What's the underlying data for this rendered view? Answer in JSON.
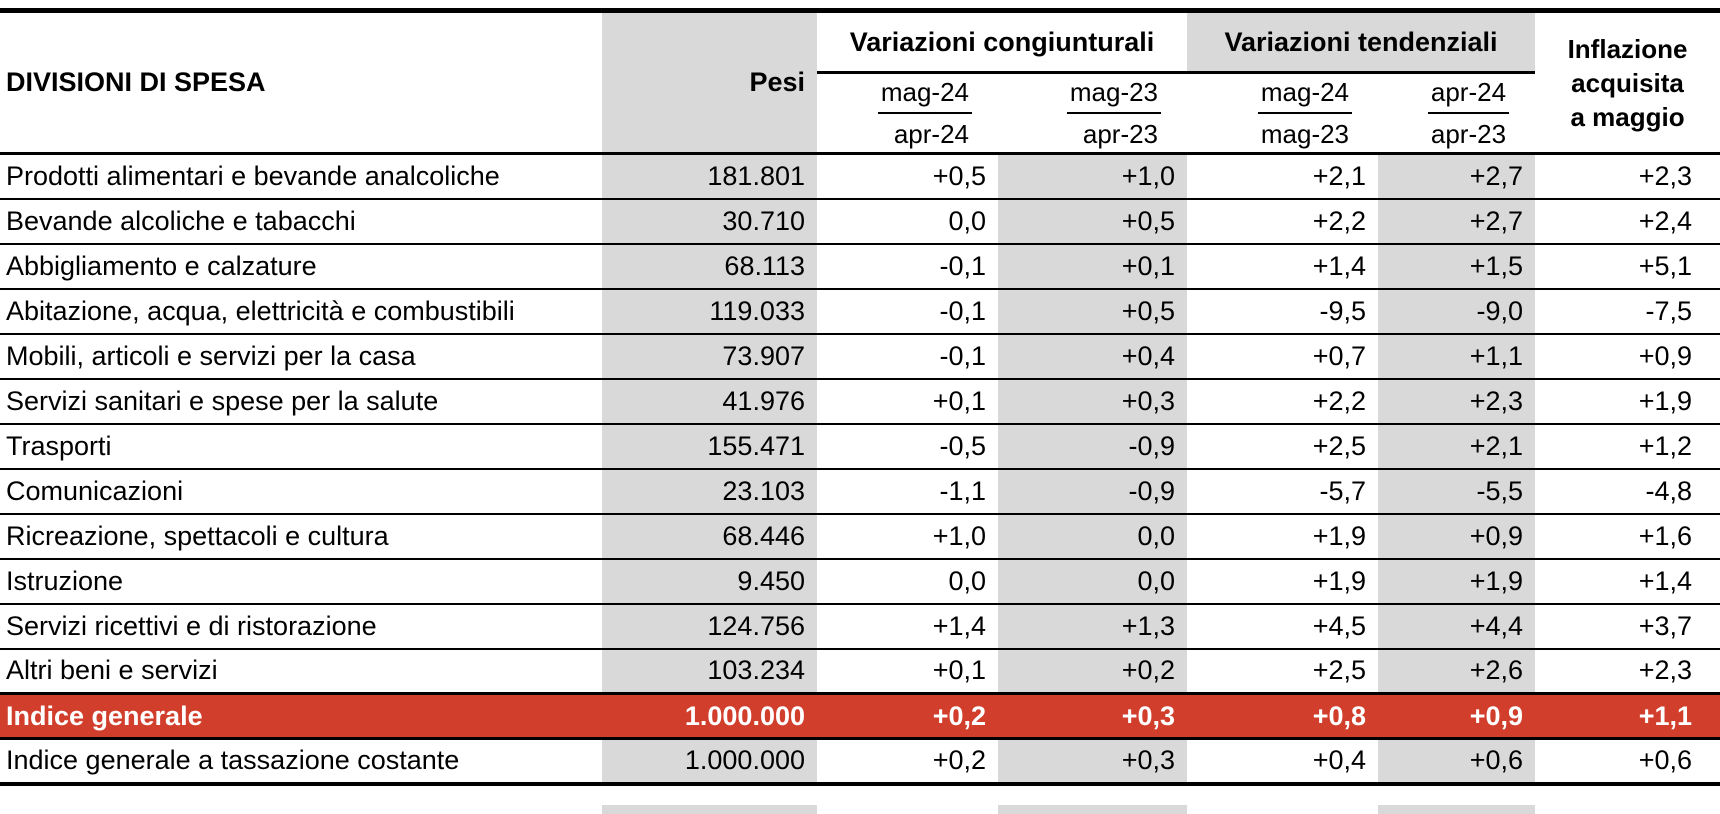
{
  "table": {
    "division_column_header": "DIVISIONI DI SPESA",
    "weights_header": "Pesi",
    "groups": [
      {
        "label": "Variazioni congiunturali",
        "sub": [
          {
            "top": "mag-24",
            "bottom": "apr-24"
          },
          {
            "top": "mag-23",
            "bottom": "apr-23"
          }
        ]
      },
      {
        "label": "Variazioni tendenziali",
        "sub": [
          {
            "top": "mag-24",
            "bottom": "mag-23"
          },
          {
            "top": "apr-24",
            "bottom": "apr-23"
          }
        ]
      }
    ],
    "inflation_header": [
      "Inflazione",
      "acquisita",
      "a maggio"
    ],
    "rows": [
      {
        "label": "Prodotti alimentari e bevande analcoliche",
        "values": [
          "181.801",
          "+0,5",
          "+1,0",
          "+2,1",
          "+2,7",
          "+2,3"
        ],
        "highlight": false
      },
      {
        "label": "Bevande alcoliche e tabacchi",
        "values": [
          "30.710",
          "0,0",
          "+0,5",
          "+2,2",
          "+2,7",
          "+2,4"
        ],
        "highlight": false
      },
      {
        "label": "Abbigliamento e calzature",
        "values": [
          "68.113",
          "-0,1",
          "+0,1",
          "+1,4",
          "+1,5",
          "+5,1"
        ],
        "highlight": false
      },
      {
        "label": "Abitazione, acqua, elettricità e combustibili",
        "values": [
          "119.033",
          "-0,1",
          "+0,5",
          "-9,5",
          "-9,0",
          "-7,5"
        ],
        "highlight": false
      },
      {
        "label": "Mobili, articoli e servizi per la casa",
        "values": [
          "73.907",
          "-0,1",
          "+0,4",
          "+0,7",
          "+1,1",
          "+0,9"
        ],
        "highlight": false
      },
      {
        "label": "Servizi sanitari e spese per la salute",
        "values": [
          "41.976",
          "+0,1",
          "+0,3",
          "+2,2",
          "+2,3",
          "+1,9"
        ],
        "highlight": false
      },
      {
        "label": "Trasporti",
        "values": [
          "155.471",
          "-0,5",
          "-0,9",
          "+2,5",
          "+2,1",
          "+1,2"
        ],
        "highlight": false
      },
      {
        "label": "Comunicazioni",
        "values": [
          "23.103",
          "-1,1",
          "-0,9",
          "-5,7",
          "-5,5",
          "-4,8"
        ],
        "highlight": false
      },
      {
        "label": "Ricreazione, spettacoli e cultura",
        "values": [
          "68.446",
          "+1,0",
          "0,0",
          "+1,9",
          "+0,9",
          "+1,6"
        ],
        "highlight": false
      },
      {
        "label": "Istruzione",
        "values": [
          "9.450",
          "0,0",
          "0,0",
          "+1,9",
          "+1,9",
          "+1,4"
        ],
        "highlight": false
      },
      {
        "label": "Servizi ricettivi e di ristorazione",
        "values": [
          "124.756",
          "+1,4",
          "+1,3",
          "+4,5",
          "+4,4",
          "+3,7"
        ],
        "highlight": false
      },
      {
        "label": "Altri beni e servizi",
        "values": [
          "103.234",
          "+0,1",
          "+0,2",
          "+2,5",
          "+2,6",
          "+2,3"
        ],
        "highlight": false
      },
      {
        "label": "Indice generale",
        "values": [
          "1.000.000",
          "+0,2",
          "+0,3",
          "+0,8",
          "+0,9",
          "+1,1"
        ],
        "highlight": true
      },
      {
        "label": "Indice generale a tassazione costante",
        "values": [
          "1.000.000",
          "+0,2",
          "+0,3",
          "+0,4",
          "+0,6",
          "+0,6"
        ],
        "highlight": false
      }
    ]
  },
  "colors": {
    "shaded_column": "#d9d9d9",
    "highlight_row": "#d23e2c",
    "highlight_text": "#ffffff",
    "rule": "#000000"
  }
}
